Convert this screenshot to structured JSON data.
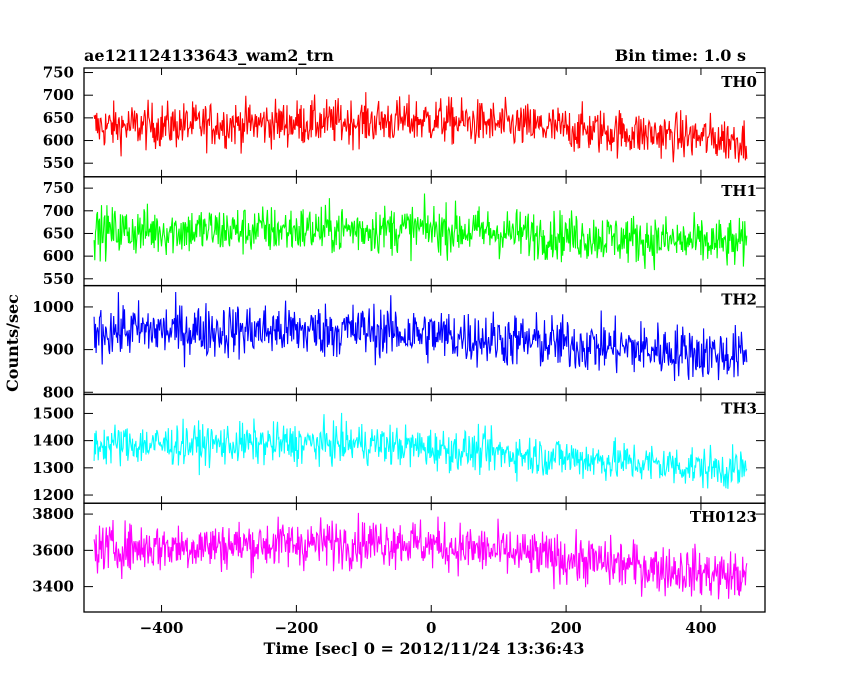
{
  "chart_data": {
    "type": "line",
    "title": "ae121124133643_wam2_trn",
    "subtitle": "Bin time: 1.0 s",
    "xlabel": "Time [sec] 0 = 2012/11/24 13:36:43",
    "ylabel": "Counts/sec",
    "xlim": [
      -515,
      495
    ],
    "x_ticks": [
      -400,
      -200,
      0,
      200,
      400
    ],
    "x_data_range": [
      -500,
      468
    ],
    "bin_time_s": 1.0,
    "grid": false,
    "panels": [
      {
        "name": "TH0",
        "color": "#ff0000",
        "ylim": [
          520,
          760
        ],
        "y_ticks": [
          550,
          600,
          650,
          700,
          750
        ],
        "baseline_start": 630,
        "baseline_peak": 645,
        "baseline_end": 600,
        "peak_x": 0,
        "noise_amplitude": 30
      },
      {
        "name": "TH1",
        "color": "#00ff00",
        "ylim": [
          535,
          775
        ],
        "y_ticks": [
          550,
          600,
          650,
          700,
          750
        ],
        "baseline_start": 655,
        "baseline_peak": 660,
        "baseline_end": 625,
        "peak_x": 0,
        "noise_amplitude": 32
      },
      {
        "name": "TH2",
        "color": "#0000ff",
        "ylim": [
          795,
          1050
        ],
        "y_ticks": [
          800,
          900,
          1000
        ],
        "baseline_start": 945,
        "baseline_peak": 945,
        "baseline_end": 885,
        "peak_x": -100,
        "noise_amplitude": 38
      },
      {
        "name": "TH3",
        "color": "#00ffff",
        "ylim": [
          1170,
          1570
        ],
        "y_ticks": [
          1200,
          1300,
          1400,
          1500
        ],
        "baseline_start": 1385,
        "baseline_peak": 1390,
        "baseline_end": 1290,
        "peak_x": -100,
        "noise_amplitude": 45
      },
      {
        "name": "TH0123",
        "color": "#ff00ff",
        "ylim": [
          3260,
          3860
        ],
        "y_ticks": [
          3400,
          3600,
          3800
        ],
        "baseline_start": 3610,
        "baseline_peak": 3650,
        "baseline_end": 3450,
        "peak_x": -50,
        "noise_amplitude": 80
      }
    ]
  }
}
